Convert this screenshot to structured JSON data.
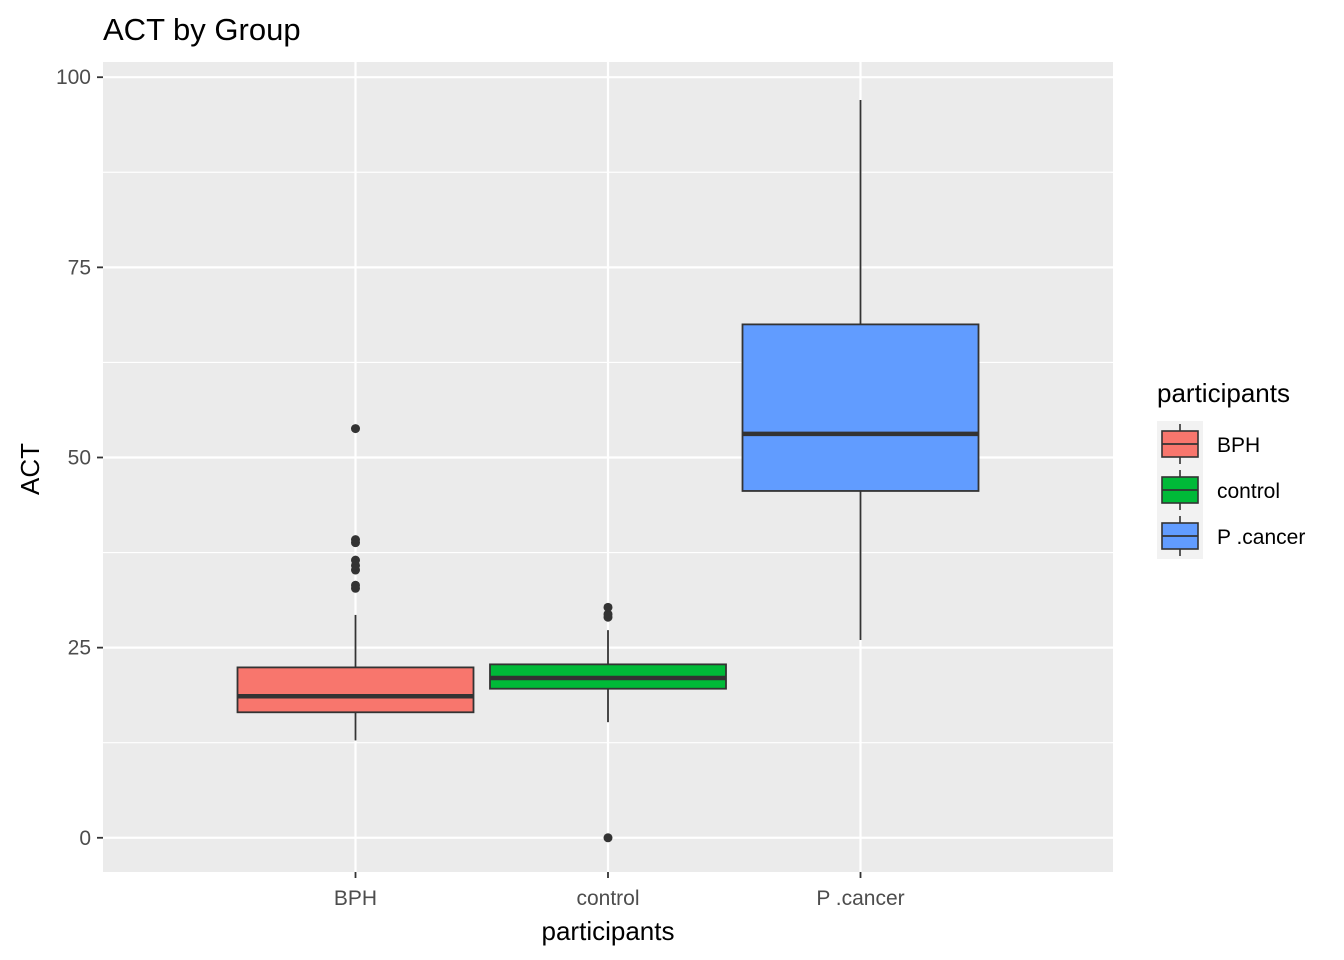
{
  "chart_data": {
    "type": "boxplot",
    "title": "ACT by Group",
    "xlabel": "participants",
    "ylabel": "ACT",
    "ylim": [
      -4.5,
      102
    ],
    "yticks": [
      0,
      25,
      50,
      75,
      100
    ],
    "grid": true,
    "legend": {
      "title": "participants",
      "position": "right"
    },
    "categories": [
      "BPH",
      "control",
      "P .cancer"
    ],
    "series": [
      {
        "name": "BPH",
        "color": "#F8766D",
        "lower_whisker": 12.8,
        "q1": 16.5,
        "median": 18.6,
        "q3": 22.4,
        "upper_whisker": 29.3,
        "outliers": [
          32.8,
          33.2,
          35.2,
          35.8,
          36.5,
          38.8,
          39.2,
          53.8
        ]
      },
      {
        "name": "control",
        "color": "#00BA38",
        "lower_whisker": 15.2,
        "q1": 19.6,
        "median": 21.0,
        "q3": 22.8,
        "upper_whisker": 27.3,
        "outliers": [
          0,
          29.0,
          29.4,
          30.3
        ]
      },
      {
        "name": "P .cancer",
        "color": "#619CFF",
        "lower_whisker": 26.0,
        "q1": 45.6,
        "median": 53.1,
        "q3": 67.5,
        "upper_whisker": 97.0,
        "outliers": []
      }
    ]
  }
}
